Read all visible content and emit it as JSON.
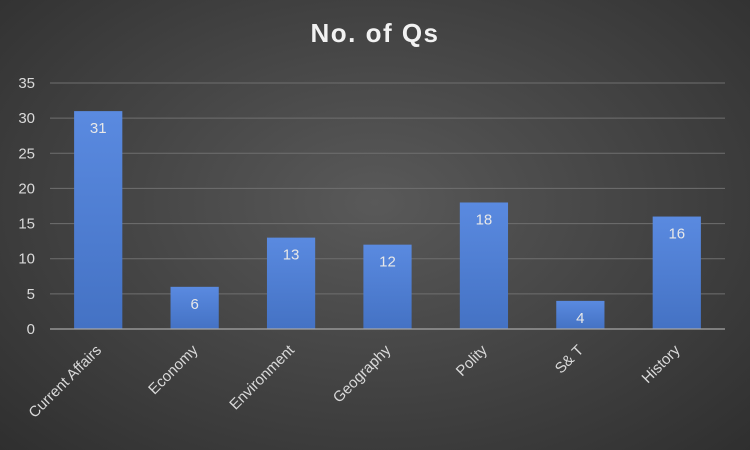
{
  "chart_data": {
    "type": "bar",
    "title": "No. of Qs",
    "xlabel": "",
    "ylabel": "",
    "categories": [
      "Current Affairs",
      "Economy",
      "Environment",
      "Geography",
      "Polity",
      "S& T",
      "History"
    ],
    "values": [
      31,
      6,
      13,
      12,
      18,
      4,
      16
    ],
    "ylim": [
      0,
      35
    ],
    "yticks": [
      0,
      5,
      10,
      15,
      20,
      25,
      30,
      35
    ],
    "grid": true,
    "legend": "none",
    "data_labels": true,
    "bar_color": "#4472c4",
    "bar_color_light": "#5a8ae0",
    "background_color": "#404040"
  }
}
